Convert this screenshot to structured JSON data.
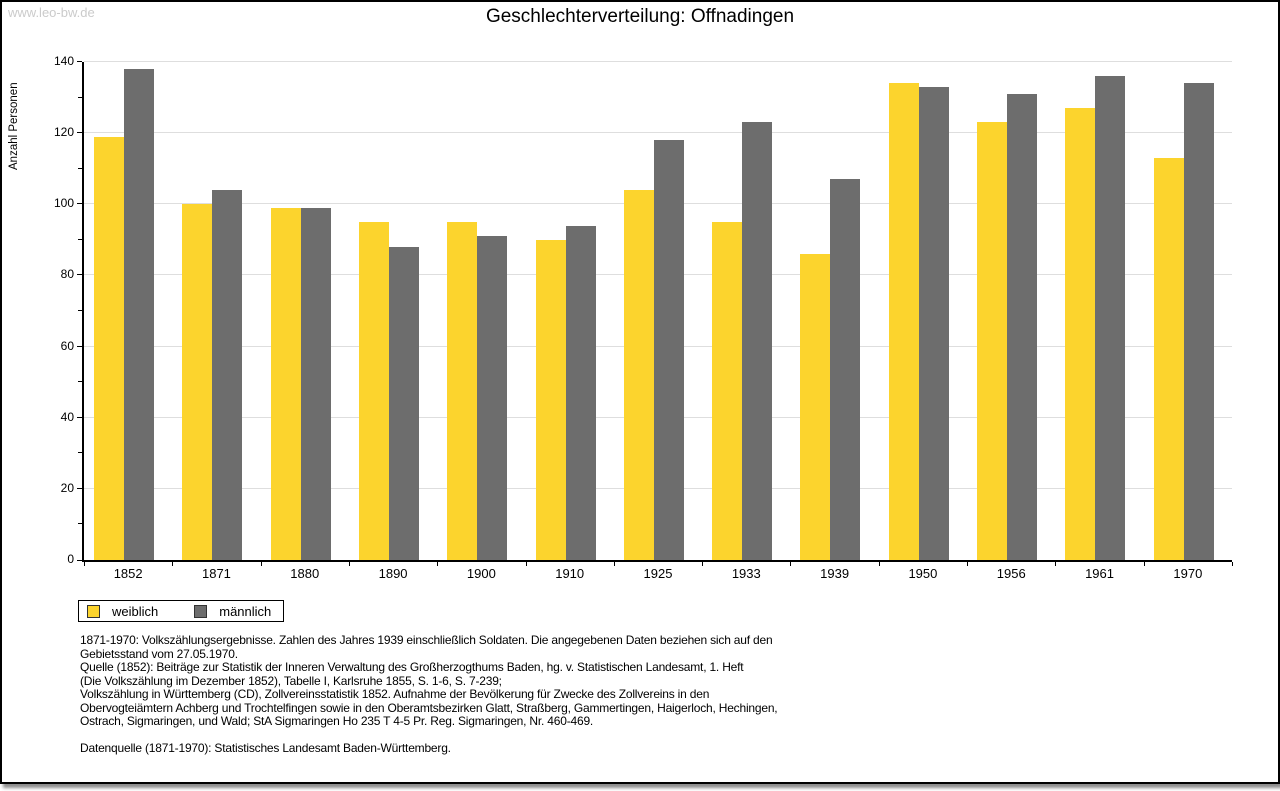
{
  "watermark": "www.leo-bw.de",
  "title": "Geschlechterverteilung: Offnadingen",
  "chart_data": {
    "type": "bar",
    "title": "Geschlechterverteilung: Offnadingen",
    "xlabel": "",
    "ylabel": "Anzahl Personen",
    "ylim": [
      0,
      140
    ],
    "ytick_step": 20,
    "yminor_step": 10,
    "grid": true,
    "legend_position": "bottom-left",
    "categories": [
      "1852",
      "1871",
      "1880",
      "1890",
      "1900",
      "1910",
      "1925",
      "1933",
      "1939",
      "1950",
      "1956",
      "1961",
      "1970"
    ],
    "series": [
      {
        "name": "weiblich",
        "color": "#FCD42D",
        "values": [
          119,
          100,
          99,
          95,
          95,
          90,
          104,
          95,
          86,
          134,
          123,
          127,
          113
        ]
      },
      {
        "name": "männlich",
        "color": "#6D6D6D",
        "values": [
          138,
          104,
          99,
          88,
          91,
          94,
          118,
          123,
          107,
          133,
          131,
          136,
          134
        ]
      }
    ]
  },
  "colors": {
    "female_bar": "#FCD42D",
    "male_bar": "#6D6D6D",
    "gridline": "#DEDEDE",
    "axis": "#000000",
    "watermark_text": "#CBCBCB"
  },
  "footnotes": {
    "lines": [
      "1871-1970: Volkszählungsergebnisse. Zahlen des Jahres 1939 einschließlich Soldaten. Die angegebenen Daten beziehen sich auf den",
      "Gebietsstand vom 27.05.1970.",
      "Quelle (1852): Beiträge zur Statistik der Inneren Verwaltung des Großherzogthums Baden, hg. v. Statistischen Landesamt, 1. Heft",
      "(Die Volkszählung im Dezember 1852), Tabelle I, Karlsruhe 1855, S. 1-6, S. 7-239;",
      "Volkszählung in Württemberg (CD), Zollvereinsstatistik 1852. Aufnahme der Bevölkerung für Zwecke des Zollvereins in den",
      "Obervogteiämtern Achberg und Trochtelfingen sowie in den Oberamtsbezirken Glatt, Straßberg, Gammertingen, Haigerloch, Hechingen,",
      "Ostrach, Sigmaringen, und Wald; StA Sigmaringen Ho 235 T 4-5 Pr. Reg. Sigmaringen, Nr. 460-469.",
      "",
      "Datenquelle (1871-1970): Statistisches Landesamt Baden-Württemberg."
    ]
  }
}
